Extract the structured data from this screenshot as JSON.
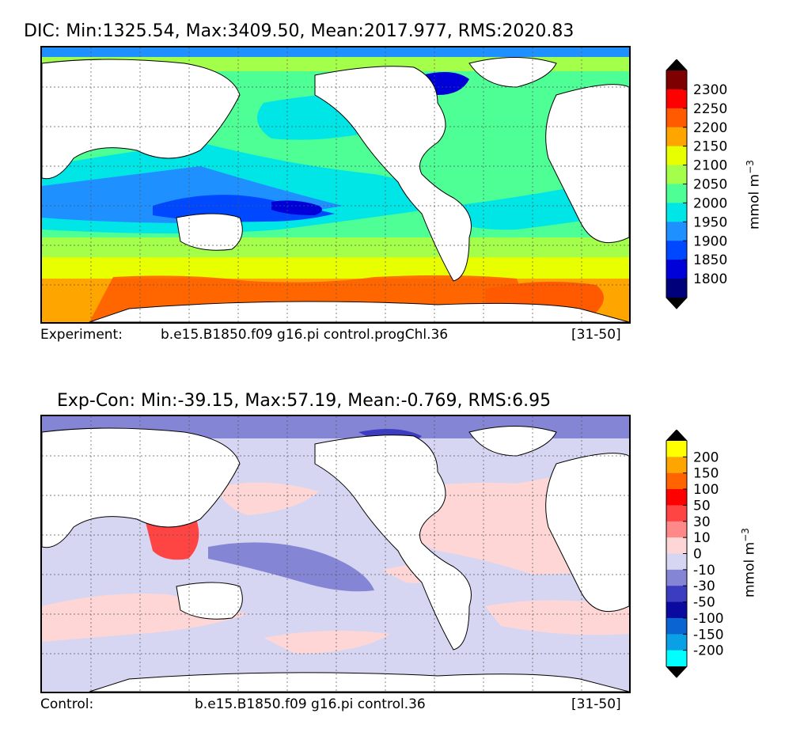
{
  "panels": [
    {
      "title": "DIC: Min:1325.54, Max:3409.50, Mean:2017.977, RMS:2020.83",
      "caption_label": "Experiment:",
      "caption_case": "b.e15.B1850.f09 g16.pi control.progChl.36",
      "caption_years": "[31-50]",
      "colorbar": {
        "unit": "mmol m",
        "unit_exp": "−3",
        "ticks": [
          "2300",
          "2250",
          "2200",
          "2150",
          "2100",
          "2050",
          "2000",
          "1950",
          "1900",
          "1850",
          "1800"
        ],
        "colors_top_to_bottom": [
          "#7f0000",
          "#ff0000",
          "#ff5a00",
          "#ffa500",
          "#e8ff00",
          "#a4ff4a",
          "#4dff95",
          "#00e5e5",
          "#1e90ff",
          "#0048ff",
          "#0000d8",
          "#00007a"
        ],
        "over_color": "#000000",
        "under_color": "#000000"
      }
    },
    {
      "title": "Exp-Con: Min:-39.15, Max:57.19, Mean:-0.769, RMS:6.95",
      "caption_label": "Control:",
      "caption_case": "b.e15.B1850.f09 g16.pi control.36",
      "caption_years": "[31-50]",
      "colorbar": {
        "unit": "mmol m",
        "unit_exp": "−3",
        "ticks": [
          "200",
          "150",
          "100",
          "50",
          "30",
          "10",
          "0",
          "-10",
          "-30",
          "-50",
          "-100",
          "-150",
          "-200"
        ],
        "colors_top_to_bottom": [
          "#ffff00",
          "#ffa500",
          "#ff6400",
          "#ff0000",
          "#ff4444",
          "#ff8888",
          "#ffd6d6",
          "#d6d6f2",
          "#8585d6",
          "#3c3cc0",
          "#0a0aa0",
          "#0a64d2",
          "#0aa0e6",
          "#00ffff"
        ],
        "over_color": "#000000",
        "under_color": "#000000"
      }
    }
  ]
}
